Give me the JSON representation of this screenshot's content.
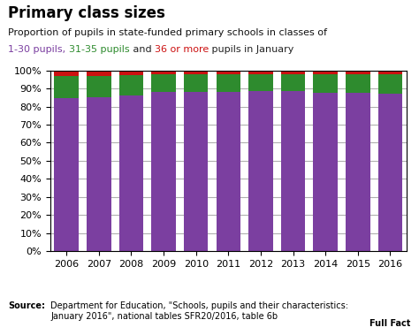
{
  "chart_data": {
    "type": "bar",
    "stacked": true,
    "title": "Primary class sizes",
    "subtitle": [
      [
        {
          "text": "Proportion of pupils in state-funded primary schools in classes of",
          "color": "#111111"
        }
      ],
      [
        {
          "text": "1-30 pupils, ",
          "color": "#7b3fa0"
        },
        {
          "text": "31-35 pupils",
          "color": "#2e8b2e"
        },
        {
          "text": " and ",
          "color": "#222222"
        },
        {
          "text": "36 or more",
          "color": "#cc1111"
        },
        {
          "text": " pupils in January",
          "color": "#222222"
        }
      ]
    ],
    "annotations": [
      {
        "text": "Source:"
      },
      {
        "text": "Department for Education, \"Schools, pupils and their characteristics:\nJanuary 2016\", national tables SFR20/2016, table 6b"
      },
      {
        "text": "Full Fact"
      }
    ],
    "categories": [
      "2006",
      "2007",
      "2008",
      "2009",
      "2010",
      "2011",
      "2012",
      "2013",
      "2014",
      "2015",
      "2016"
    ],
    "series": [
      {
        "color": "#7b3fa0",
        "values": [
          84.8,
          84.9,
          86.3,
          88.1,
          88.2,
          88.3,
          88.4,
          88.4,
          87.8,
          87.5,
          87.1
        ]
      },
      {
        "color": "#2e8b2e",
        "values": [
          12.3,
          12.2,
          11.3,
          9.7,
          9.6,
          9.5,
          9.4,
          9.5,
          9.9,
          10.2,
          10.6
        ]
      },
      {
        "color": "#cc1111",
        "values": [
          2.9,
          2.9,
          2.4,
          2.2,
          2.2,
          2.2,
          2.2,
          2.1,
          2.3,
          2.3,
          2.3
        ]
      }
    ],
    "ylim": [
      0,
      100
    ],
    "yticks": [
      {
        "value": 0,
        "label": "0%"
      },
      {
        "value": 10,
        "label": "10%"
      },
      {
        "value": 20,
        "label": "20%"
      },
      {
        "value": 30,
        "label": "30%"
      },
      {
        "value": 40,
        "label": "40%"
      },
      {
        "value": 50,
        "label": "50%"
      },
      {
        "value": 60,
        "label": "60%"
      },
      {
        "value": 70,
        "label": "70%"
      },
      {
        "value": 80,
        "label": "80%"
      },
      {
        "value": 90,
        "label": "90%"
      },
      {
        "value": 100,
        "label": "100%"
      }
    ],
    "grid": true
  }
}
